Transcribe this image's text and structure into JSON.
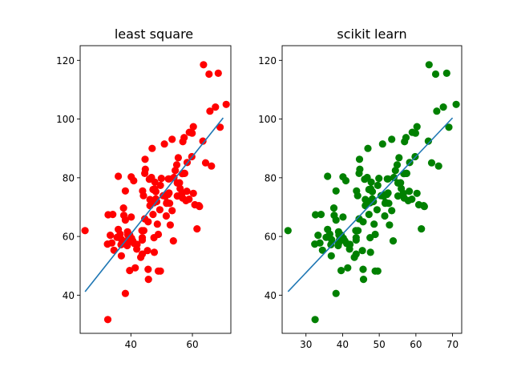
{
  "chart_data": [
    {
      "type": "scatter",
      "title": "least square",
      "xlabel": "",
      "ylabel": "",
      "xlim": [
        23.5,
        72.5
      ],
      "ylim": [
        27,
        125
      ],
      "xticks": [
        40,
        60
      ],
      "yticks": [
        40,
        60,
        80,
        100,
        120
      ],
      "grid": false,
      "point_color": "#ff0000",
      "line_color": "#1f77b4",
      "fit_line": {
        "x": [
          25.1,
          70.0
        ],
        "y": [
          41.2,
          100.4
        ]
      },
      "points": {
        "x": [
          32.5,
          53.4,
          61.5,
          47.5,
          59.8,
          55.1,
          52.2,
          39.3,
          48.1,
          52.6,
          45.4,
          54.4,
          44.2,
          58.2,
          56.7,
          48.9,
          44.7,
          60.3,
          45.6,
          38.8,
          66.2,
          65.4,
          47.7,
          46.7,
          52.1,
          57.3,
          59.0,
          36.9,
          44.6,
          59.9,
          56.8,
          53.4,
          48.4,
          43.7,
          49.6,
          60.8,
          51.7,
          55.4,
          43.6,
          38.2,
          51.4,
          47.8,
          39.0,
          63.6,
          52.8,
          40.9,
          46.0,
          51.6,
          32.4,
          39.6,
          49.4,
          35.9,
          34.1,
          46.9,
          46.2,
          58.9,
          52.4,
          47.2,
          57.3,
          32.6,
          38.2,
          48.1,
          35.9,
          43.8,
          51.5,
          58.3,
          51.2,
          44.5,
          60.3,
          62.1,
          64.3,
          44.1,
          45.6,
          40.2,
          39.1,
          39.6,
          41.4,
          47.6,
          36.8,
          38.2,
          54.0,
          53.8,
          52.4,
          38.9,
          37.0,
          46.2,
          57.5,
          50.9,
          43.7,
          33.8,
          62.3,
          57.9,
          40.1,
          56.6,
          37.7,
          63.4,
          56.9,
          48.6,
          40.6,
          37.6,
          42.0,
          35.5,
          56.0,
          41.1,
          41.9,
          47.5,
          49.6,
          38.9,
          33.3,
          43.7,
          50.5,
          45.7,
          49.9,
          47.2,
          43.2,
          48.9,
          40.1,
          55.8,
          54.9,
          69.0,
          67.5,
          55.1,
          44.5,
          65.7,
          36.5,
          68.4,
          71.0,
          34.5,
          25.1
        ],
        "y": [
          31.7,
          68.8,
          62.6,
          71.5,
          87.2,
          78.2,
          79.6,
          59.2,
          75.3,
          71.3,
          55.2,
          82.5,
          62.0,
          75.4,
          81.4,
          60.7,
          82.9,
          97.4,
          48.8,
          56.9,
          84.0,
          115.3,
          76.2,
          80.1,
          74.3,
          81.5,
          95.5,
          53.4,
          86.3,
          95.2,
          73.1,
          93.1,
          71.9,
          54.0,
          77.4,
          70.8,
          71.6,
          86.8,
          62.0,
          65.6,
          74.2,
          78.5,
          60.5,
          118.5,
          63.9,
          79.0,
          79.5,
          71.3,
          57.4,
          60.5,
          69.1,
          80.5,
          67.5,
          90.0,
          72.6,
          72.7,
          74.8,
          76.0,
          93.7,
          67.4,
          40.6,
          72.8,
          62.4,
          75.5,
          67.0,
          85.2,
          73.7,
          66.0,
          74.7,
          70.5,
          85.1,
          73.9,
          65.0,
          59.4,
          58.6,
          48.4,
          49.3,
          54.6,
          57.2,
          75.5,
          80.1,
          58.5,
          79.6,
          57.6,
          58.9,
          70.5,
          81.5,
          91.5,
          58.8,
          57.8,
          70.2,
          72.2,
          80.3,
          74.7,
          67.2,
          92.5,
          92.3,
          64.2,
          58.5,
          69.7,
          57.3,
          59.7,
          76.3,
          57.6,
          55.7,
          59.6,
          48.2,
          61.6,
          60.4,
          59.6,
          73.9,
          45.4,
          79.8,
          67.5,
          52.9,
          48.2,
          66.6,
          78.3,
          84.4,
          97.2,
          104.1,
          73.8,
          81.5,
          102.7,
          60.8,
          115.6,
          105.0,
          55.3,
          62.0
        ]
      }
    },
    {
      "type": "scatter",
      "title": "scikit learn",
      "xlabel": "",
      "ylabel": "",
      "xlim": [
        23.5,
        72.5
      ],
      "ylim": [
        27,
        125
      ],
      "xticks": [
        30,
        40,
        50,
        60,
        70
      ],
      "yticks": [
        40,
        60,
        80,
        100,
        120
      ],
      "grid": false,
      "point_color": "#008000",
      "line_color": "#1f77b4",
      "fit_line": {
        "x": [
          25.1,
          70.0
        ],
        "y": [
          41.2,
          100.4
        ]
      },
      "points": {
        "x": [
          32.5,
          53.4,
          61.5,
          47.5,
          59.8,
          55.1,
          52.2,
          39.3,
          48.1,
          52.6,
          45.4,
          54.4,
          44.2,
          58.2,
          56.7,
          48.9,
          44.7,
          60.3,
          45.6,
          38.8,
          66.2,
          65.4,
          47.7,
          46.7,
          52.1,
          57.3,
          59.0,
          36.9,
          44.6,
          59.9,
          56.8,
          53.4,
          48.4,
          43.7,
          49.6,
          60.8,
          51.7,
          55.4,
          43.6,
          38.2,
          51.4,
          47.8,
          39.0,
          63.6,
          52.8,
          40.9,
          46.0,
          51.6,
          32.4,
          39.6,
          49.4,
          35.9,
          34.1,
          46.9,
          46.2,
          58.9,
          52.4,
          47.2,
          57.3,
          32.6,
          38.2,
          48.1,
          35.9,
          43.8,
          51.5,
          58.3,
          51.2,
          44.5,
          60.3,
          62.1,
          64.3,
          44.1,
          45.6,
          40.2,
          39.1,
          39.6,
          41.4,
          47.6,
          36.8,
          38.2,
          54.0,
          53.8,
          52.4,
          38.9,
          37.0,
          46.2,
          57.5,
          50.9,
          43.7,
          33.8,
          62.3,
          57.9,
          40.1,
          56.6,
          37.7,
          63.4,
          56.9,
          48.6,
          40.6,
          37.6,
          42.0,
          35.5,
          56.0,
          41.1,
          41.9,
          47.5,
          49.6,
          38.9,
          33.3,
          43.7,
          50.5,
          45.7,
          49.9,
          47.2,
          43.2,
          48.9,
          40.1,
          55.8,
          54.9,
          69.0,
          67.5,
          55.1,
          44.5,
          65.7,
          36.5,
          68.4,
          71.0,
          34.5,
          25.1
        ],
        "y": [
          31.7,
          68.8,
          62.6,
          71.5,
          87.2,
          78.2,
          79.6,
          59.2,
          75.3,
          71.3,
          55.2,
          82.5,
          62.0,
          75.4,
          81.4,
          60.7,
          82.9,
          97.4,
          48.8,
          56.9,
          84.0,
          115.3,
          76.2,
          80.1,
          74.3,
          81.5,
          95.5,
          53.4,
          86.3,
          95.2,
          73.1,
          93.1,
          71.9,
          54.0,
          77.4,
          70.8,
          71.6,
          86.8,
          62.0,
          65.6,
          74.2,
          78.5,
          60.5,
          118.5,
          63.9,
          79.0,
          79.5,
          71.3,
          57.4,
          60.5,
          69.1,
          80.5,
          67.5,
          90.0,
          72.6,
          72.7,
          74.8,
          76.0,
          93.7,
          67.4,
          40.6,
          72.8,
          62.4,
          75.5,
          67.0,
          85.2,
          73.7,
          66.0,
          74.7,
          70.5,
          85.1,
          73.9,
          65.0,
          59.4,
          58.6,
          48.4,
          49.3,
          54.6,
          57.2,
          75.5,
          80.1,
          58.5,
          79.6,
          57.6,
          58.9,
          70.5,
          81.5,
          91.5,
          58.8,
          57.8,
          70.2,
          72.2,
          80.3,
          74.7,
          67.2,
          92.5,
          92.3,
          64.2,
          58.5,
          69.7,
          57.3,
          59.7,
          76.3,
          57.6,
          55.7,
          59.6,
          48.2,
          61.6,
          60.4,
          59.6,
          73.9,
          45.4,
          79.8,
          67.5,
          52.9,
          48.2,
          66.6,
          78.3,
          84.4,
          97.2,
          104.1,
          73.8,
          81.5,
          102.7,
          60.8,
          115.6,
          105.0,
          55.3,
          62.0
        ]
      }
    }
  ]
}
